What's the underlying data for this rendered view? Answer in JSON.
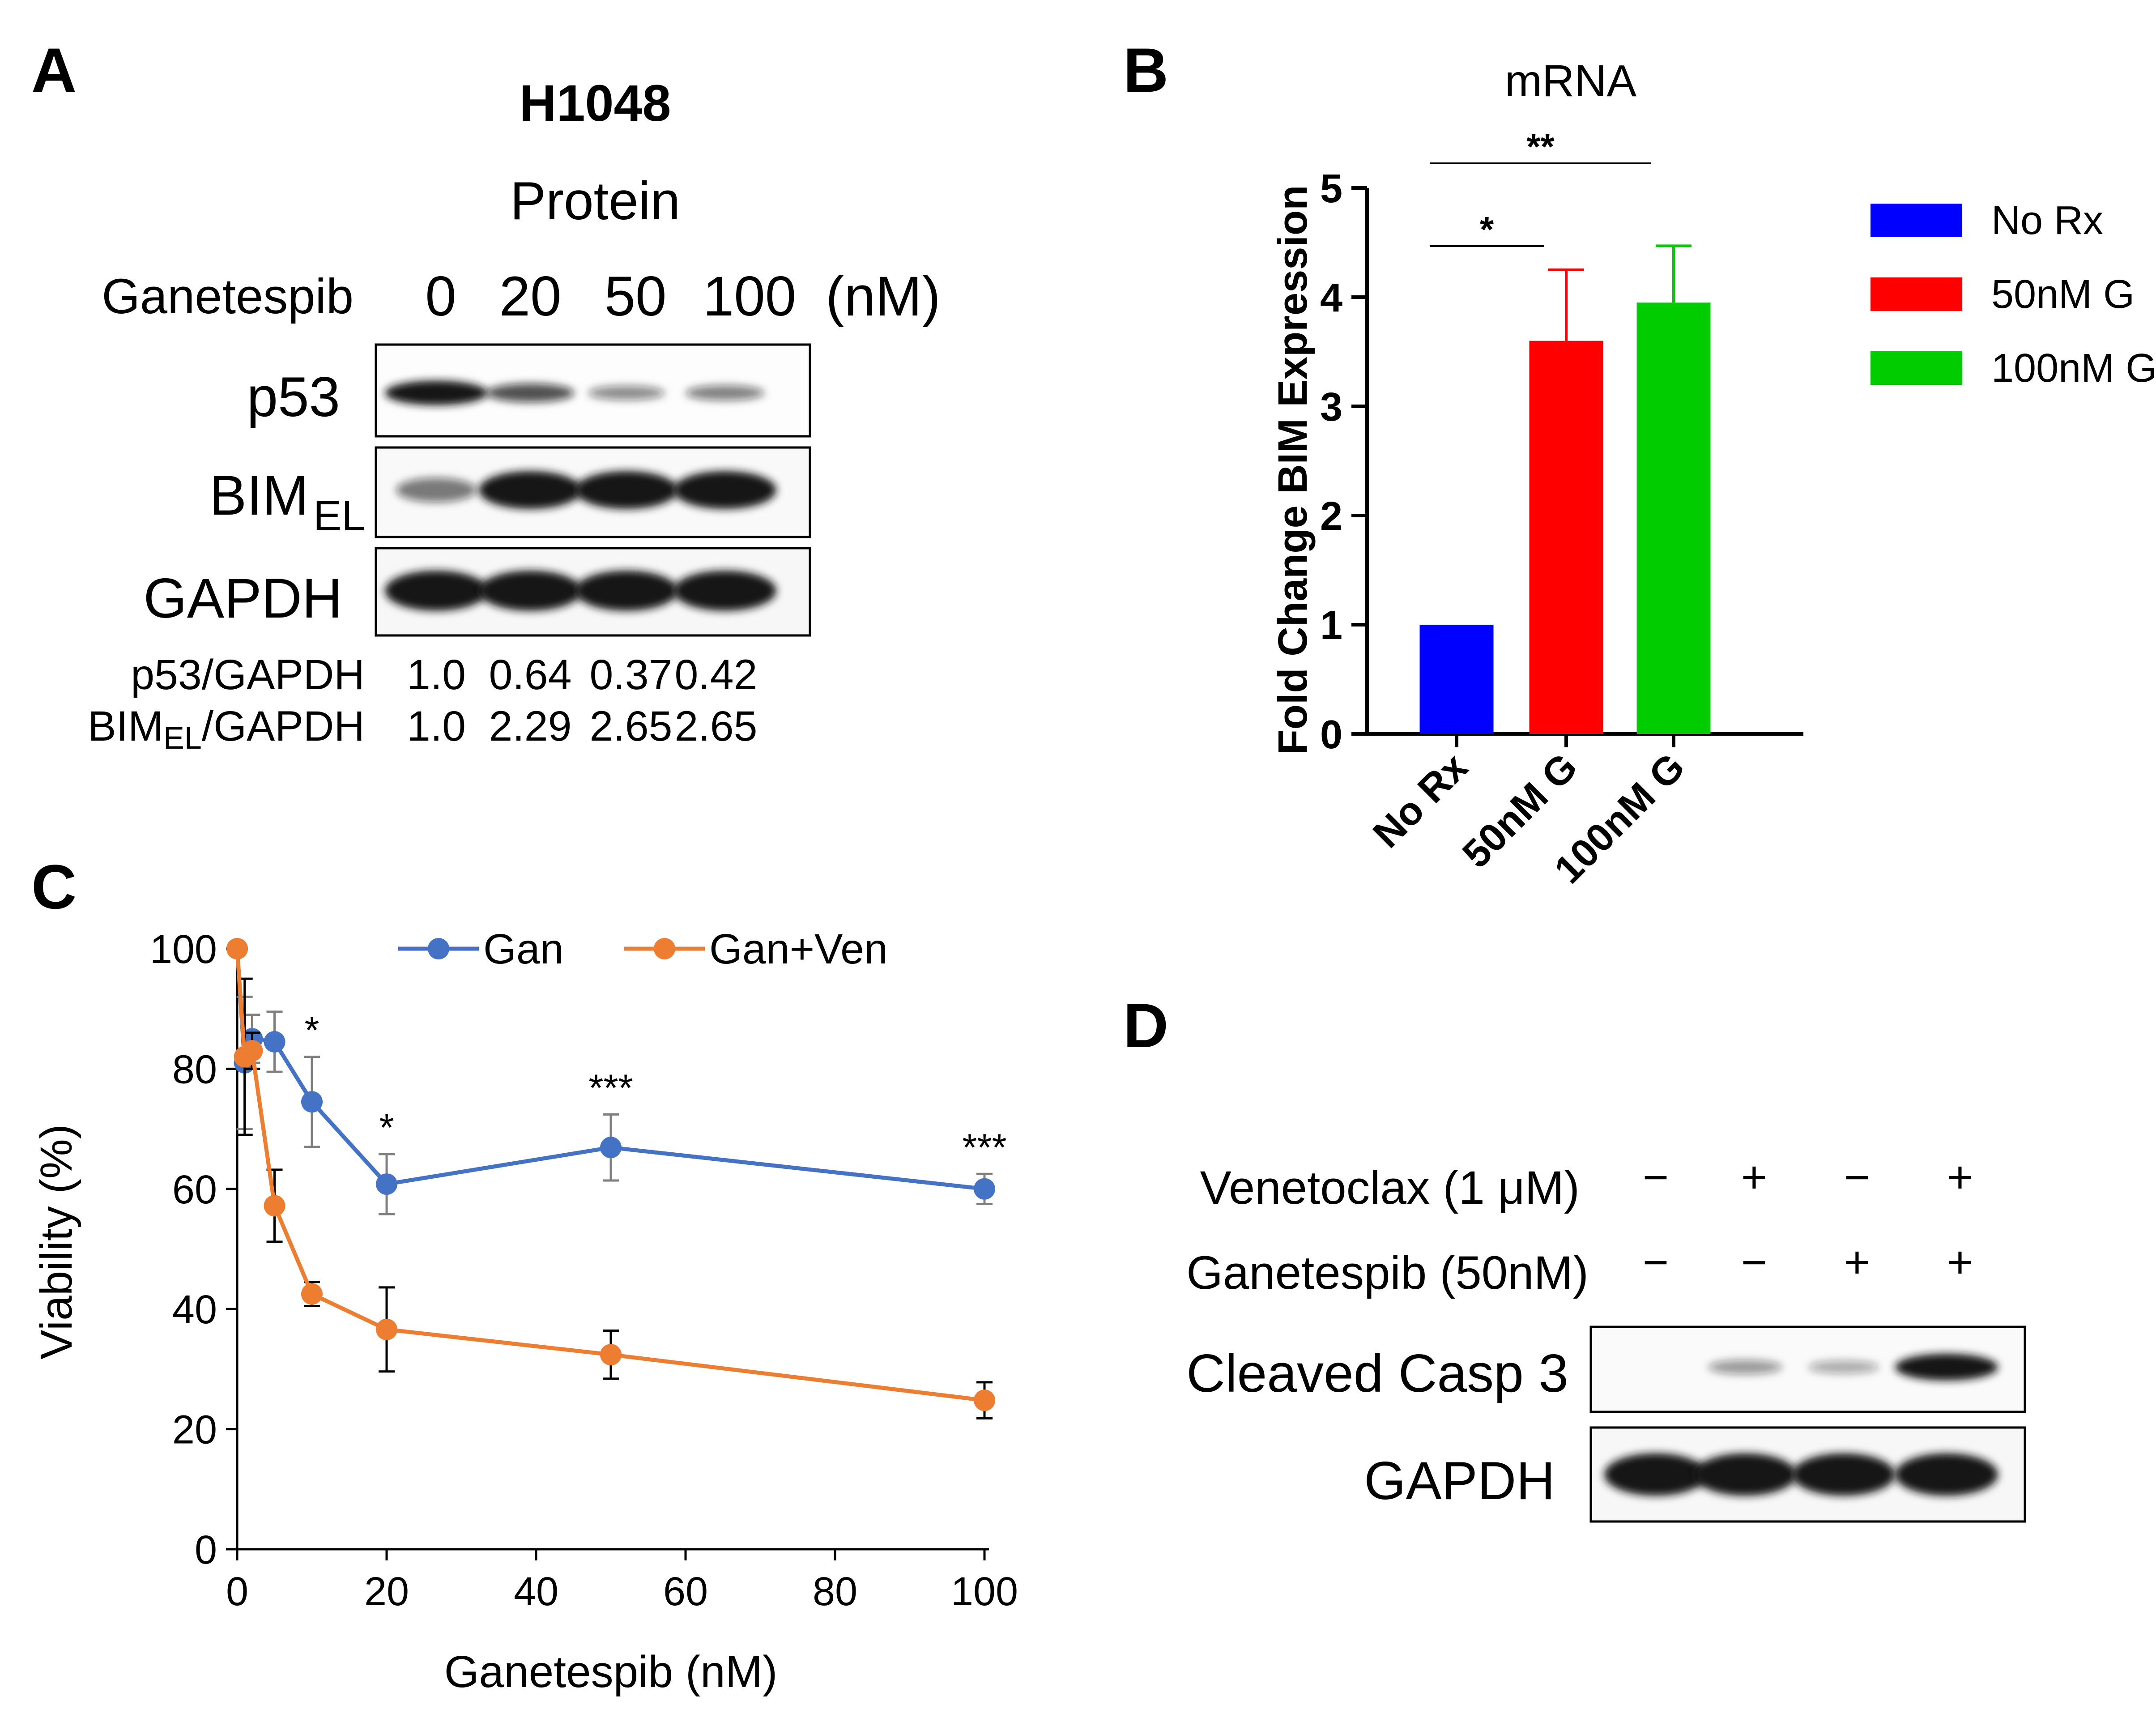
{
  "panel_a": {
    "letter": "A",
    "cell_line": "H1048",
    "subtitle": "Protein",
    "treatment_label": "Ganetespib",
    "doses": [
      "0",
      "20",
      "50",
      "100"
    ],
    "dose_unit": "(nM)",
    "rows": [
      {
        "label": "p53",
        "band_intensity": [
          1.0,
          0.64,
          0.37,
          0.42
        ]
      },
      {
        "label": "BIM",
        "subscript": "EL",
        "band_intensity": [
          0.45,
          1.0,
          1.0,
          1.0
        ]
      },
      {
        "label": "GAPDH",
        "band_intensity": [
          1.0,
          1.0,
          1.0,
          1.0
        ]
      }
    ],
    "quant_rows": [
      {
        "label": "p53/GAPDH",
        "values": [
          "1.0",
          "0.64",
          "0.37",
          "0.42"
        ]
      },
      {
        "label_main": "BIM",
        "label_sub": "EL",
        "label_tail": "/GAPDH",
        "values": [
          "1.0",
          "2.29",
          "2.65",
          "2.65"
        ]
      }
    ]
  },
  "panel_d": {
    "letter": "D",
    "conditions": [
      {
        "label": "Venetoclax (1 μM)",
        "signs": [
          "−",
          "+",
          "−",
          "+"
        ]
      },
      {
        "label": "Ganetespib (50nM)",
        "signs": [
          "−",
          "−",
          "+",
          "+"
        ]
      }
    ],
    "rows": [
      {
        "label": "Cleaved Casp 3",
        "band_intensity": [
          0.0,
          0.3,
          0.22,
          1.0
        ]
      },
      {
        "label": "GAPDH",
        "band_intensity": [
          1.0,
          1.0,
          1.0,
          1.0
        ]
      }
    ]
  },
  "chart_data": [
    {
      "panel": "B",
      "type": "bar",
      "title": "mRNA",
      "xlabel": "",
      "ylabel": "Fold Change BIM Expression",
      "ylim": [
        0,
        5
      ],
      "yticks": [
        "0",
        "1",
        "2",
        "3",
        "4",
        "5"
      ],
      "categories": [
        "No Rx",
        "50nM G",
        "100nM G"
      ],
      "values": [
        1.0,
        3.6,
        3.95
      ],
      "error": [
        0,
        0.65,
        0.52
      ],
      "colors": [
        "#0000ff",
        "#ff0000",
        "#00cc00"
      ],
      "legend": {
        "placement": "right",
        "entries": [
          {
            "label": "No Rx",
            "color": "#0000ff"
          },
          {
            "label": "50nM G",
            "color": "#ff0000"
          },
          {
            "label": "100nM G",
            "color": "#00cc00"
          }
        ]
      },
      "significance": [
        {
          "from": 0,
          "to": 1,
          "label": "*"
        },
        {
          "from": 0,
          "to": 2,
          "label": "**"
        }
      ]
    },
    {
      "panel": "C",
      "type": "line",
      "title": "",
      "xlabel": "Ganetespib (nM)",
      "ylabel": "Viability (%)",
      "xlim": [
        0,
        100
      ],
      "ylim": [
        0,
        100
      ],
      "xticks": [
        "0",
        "20",
        "40",
        "60",
        "80",
        "100"
      ],
      "yticks": [
        "0",
        "20",
        "40",
        "60",
        "80",
        "100"
      ],
      "legend": {
        "placement": "top"
      },
      "series": [
        {
          "name": "Gan",
          "color": "#4472c4",
          "x": [
            0,
            1,
            2,
            5,
            10,
            20,
            50,
            100
          ],
          "y": [
            100,
            81,
            85,
            84.5,
            74.5,
            60.8,
            66.9,
            60
          ],
          "err": [
            0,
            11,
            4,
            5,
            7.5,
            5,
            5.5,
            2.5
          ]
        },
        {
          "name": "Gan+Ven",
          "color": "#ed7d31",
          "x": [
            0,
            1,
            2,
            5,
            10,
            20,
            50,
            100
          ],
          "y": [
            100,
            82,
            83,
            57.2,
            42.5,
            36.6,
            32.4,
            24.8
          ],
          "err": [
            0,
            13,
            3,
            6,
            2,
            7,
            4,
            3
          ]
        }
      ],
      "annotations": [
        {
          "x": 10,
          "label": "*"
        },
        {
          "x": 20,
          "label": "*"
        },
        {
          "x": 50,
          "label": "***"
        },
        {
          "x": 100,
          "label": "***"
        }
      ]
    }
  ],
  "letters": {
    "b": "B",
    "c": "C"
  }
}
